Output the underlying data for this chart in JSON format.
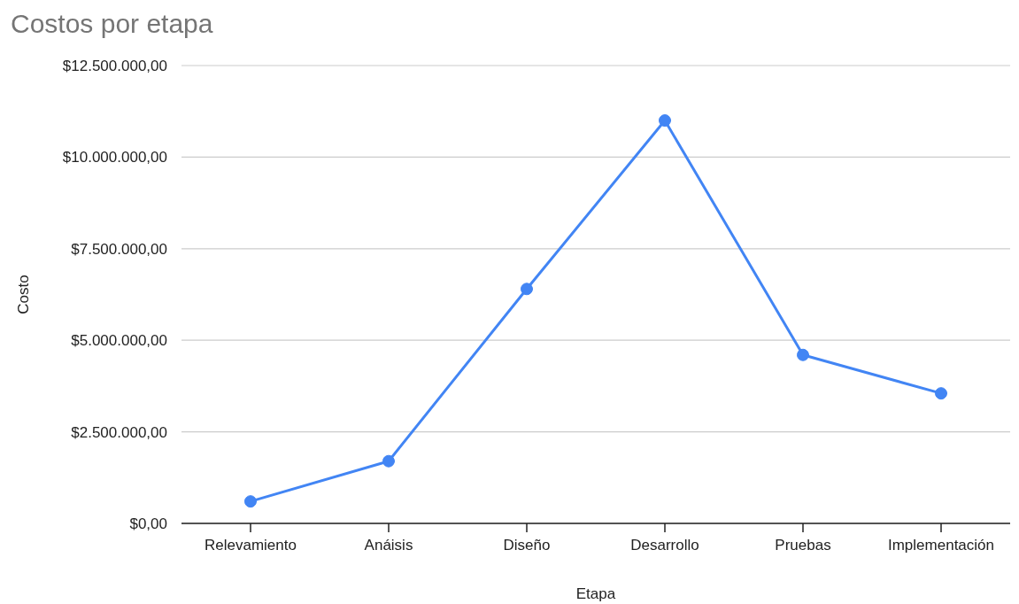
{
  "chart_data": {
    "type": "line",
    "title": "Costos por etapa",
    "xlabel": "Etapa",
    "ylabel": "Costo",
    "categories": [
      "Relevamiento",
      "Anáisis",
      "Diseño",
      "Desarrollo",
      "Pruebas",
      "Implementación"
    ],
    "series": [
      {
        "color": "#4285f4",
        "values": [
          600000,
          1700000,
          6400000,
          11000000,
          4600000,
          3550000
        ]
      }
    ],
    "ylim": [
      0,
      12500000
    ],
    "yticks": [
      {
        "value": 0,
        "label": "$0,00"
      },
      {
        "value": 2500000,
        "label": "$2.500.000,00"
      },
      {
        "value": 5000000,
        "label": "$5.000.000,00"
      },
      {
        "value": 7500000,
        "label": "$7.500.000,00"
      },
      {
        "value": 10000000,
        "label": "$10.000.000,00"
      },
      {
        "value": 12500000,
        "label": "$12.500.000,00"
      }
    ],
    "grid": "y",
    "marker": "circle",
    "line_style": "solid"
  }
}
